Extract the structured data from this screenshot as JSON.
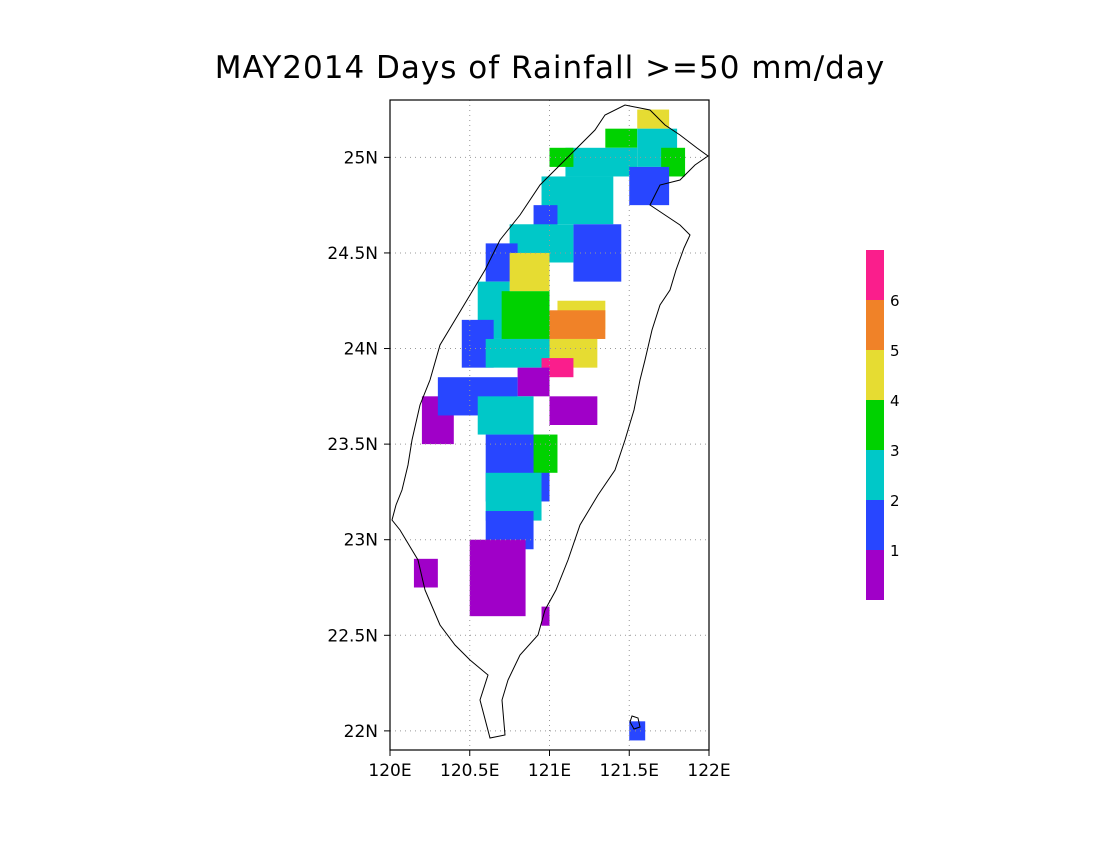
{
  "title": "MAY2014 Days of Rainfall >=50 mm/day",
  "map": {
    "lon_range": [
      120,
      122
    ],
    "lat_range": [
      21.9,
      25.3
    ],
    "grid": "dotted",
    "lon_ticks": [
      {
        "value": 120,
        "label": "120E"
      },
      {
        "value": 120.5,
        "label": "120.5E"
      },
      {
        "value": 121,
        "label": "121E"
      },
      {
        "value": 121.5,
        "label": "121.5E"
      },
      {
        "value": 122,
        "label": "122E"
      }
    ],
    "lat_ticks": [
      {
        "value": 22,
        "label": "22N"
      },
      {
        "value": 22.5,
        "label": "22.5N"
      },
      {
        "value": 23,
        "label": "23N"
      },
      {
        "value": 23.5,
        "label": "23.5N"
      },
      {
        "value": 24,
        "label": "24N"
      },
      {
        "value": 24.5,
        "label": "24.5N"
      },
      {
        "value": 25,
        "label": "25N"
      }
    ]
  },
  "legend": {
    "placement": "right",
    "levels": [
      {
        "color": "#a000c8",
        "label": ""
      },
      {
        "color": "#2846ff",
        "label": "1"
      },
      {
        "color": "#00c8c8",
        "label": "2"
      },
      {
        "color": "#00d200",
        "label": "3"
      },
      {
        "color": "#e6dc32",
        "label": "4"
      },
      {
        "color": "#f08228",
        "label": "5"
      },
      {
        "color": "#fa1e8c",
        "label": "6"
      }
    ]
  },
  "chart_data": {
    "type": "heatmap",
    "variable": "days of rainfall >= 50 mm/day",
    "period": "MAY2014",
    "x_units": "degrees E",
    "y_units": "degrees N",
    "regions": [
      {
        "lon": [
          121.55,
          121.75
        ],
        "lat": [
          25.15,
          25.25
        ],
        "value": 4
      },
      {
        "lon": [
          121.35,
          121.55
        ],
        "lat": [
          25.05,
          25.15
        ],
        "value": 3
      },
      {
        "lon": [
          121.55,
          121.8
        ],
        "lat": [
          24.95,
          25.15
        ],
        "value": 2
      },
      {
        "lon": [
          121.1,
          121.55
        ],
        "lat": [
          24.9,
          25.05
        ],
        "value": 2
      },
      {
        "lon": [
          121.0,
          121.15
        ],
        "lat": [
          24.95,
          25.05
        ],
        "value": 3
      },
      {
        "lon": [
          121.7,
          121.85
        ],
        "lat": [
          24.9,
          25.05
        ],
        "value": 3
      },
      {
        "lon": [
          121.5,
          121.75
        ],
        "lat": [
          24.75,
          24.95
        ],
        "value": 1
      },
      {
        "lon": [
          120.95,
          121.4
        ],
        "lat": [
          24.65,
          24.9
        ],
        "value": 2
      },
      {
        "lon": [
          120.9,
          121.05
        ],
        "lat": [
          24.55,
          24.75
        ],
        "value": 1
      },
      {
        "lon": [
          121.15,
          121.45
        ],
        "lat": [
          24.35,
          24.65
        ],
        "value": 1
      },
      {
        "lon": [
          120.75,
          121.15
        ],
        "lat": [
          24.45,
          24.65
        ],
        "value": 2
      },
      {
        "lon": [
          120.6,
          120.8
        ],
        "lat": [
          24.35,
          24.55
        ],
        "value": 1
      },
      {
        "lon": [
          120.75,
          121.0
        ],
        "lat": [
          24.3,
          24.5
        ],
        "value": 4
      },
      {
        "lon": [
          120.55,
          120.75
        ],
        "lat": [
          24.05,
          24.35
        ],
        "value": 2
      },
      {
        "lon": [
          120.7,
          121.0
        ],
        "lat": [
          24.05,
          24.3
        ],
        "value": 3
      },
      {
        "lon": [
          120.45,
          120.65
        ],
        "lat": [
          23.9,
          24.15
        ],
        "value": 1
      },
      {
        "lon": [
          121.05,
          121.35
        ],
        "lat": [
          24.1,
          24.25
        ],
        "value": 4
      },
      {
        "lon": [
          121.0,
          121.35
        ],
        "lat": [
          24.05,
          24.2
        ],
        "value": 5
      },
      {
        "lon": [
          120.6,
          121.0
        ],
        "lat": [
          23.9,
          24.05
        ],
        "value": 2
      },
      {
        "lon": [
          121.0,
          121.3
        ],
        "lat": [
          23.9,
          24.05
        ],
        "value": 4
      },
      {
        "lon": [
          120.95,
          121.15
        ],
        "lat": [
          23.85,
          23.95
        ],
        "value": 6
      },
      {
        "lon": [
          120.8,
          121.0
        ],
        "lat": [
          23.75,
          23.9
        ],
        "value": 0
      },
      {
        "lon": [
          120.2,
          120.4
        ],
        "lat": [
          23.5,
          23.75
        ],
        "value": 0
      },
      {
        "lon": [
          120.3,
          120.8
        ],
        "lat": [
          23.65,
          23.85
        ],
        "value": 1
      },
      {
        "lon": [
          120.55,
          120.9
        ],
        "lat": [
          23.55,
          23.75
        ],
        "value": 2
      },
      {
        "lon": [
          121.0,
          121.3
        ],
        "lat": [
          23.6,
          23.75
        ],
        "value": 0
      },
      {
        "lon": [
          120.6,
          121.0
        ],
        "lat": [
          23.2,
          23.55
        ],
        "value": 1
      },
      {
        "lon": [
          120.9,
          121.05
        ],
        "lat": [
          23.35,
          23.55
        ],
        "value": 3
      },
      {
        "lon": [
          120.6,
          120.95
        ],
        "lat": [
          23.1,
          23.35
        ],
        "value": 2
      },
      {
        "lon": [
          120.6,
          120.9
        ],
        "lat": [
          22.95,
          23.15
        ],
        "value": 1
      },
      {
        "lon": [
          120.5,
          120.85
        ],
        "lat": [
          22.6,
          23.0
        ],
        "value": 0
      },
      {
        "lon": [
          120.15,
          120.3
        ],
        "lat": [
          22.75,
          22.9
        ],
        "value": 0
      },
      {
        "lon": [
          120.95,
          121.0
        ],
        "lat": [
          22.55,
          22.65
        ],
        "value": 0
      },
      {
        "lon": [
          121.5,
          121.6
        ],
        "lat": [
          21.95,
          22.05
        ],
        "value": 1
      }
    ]
  }
}
